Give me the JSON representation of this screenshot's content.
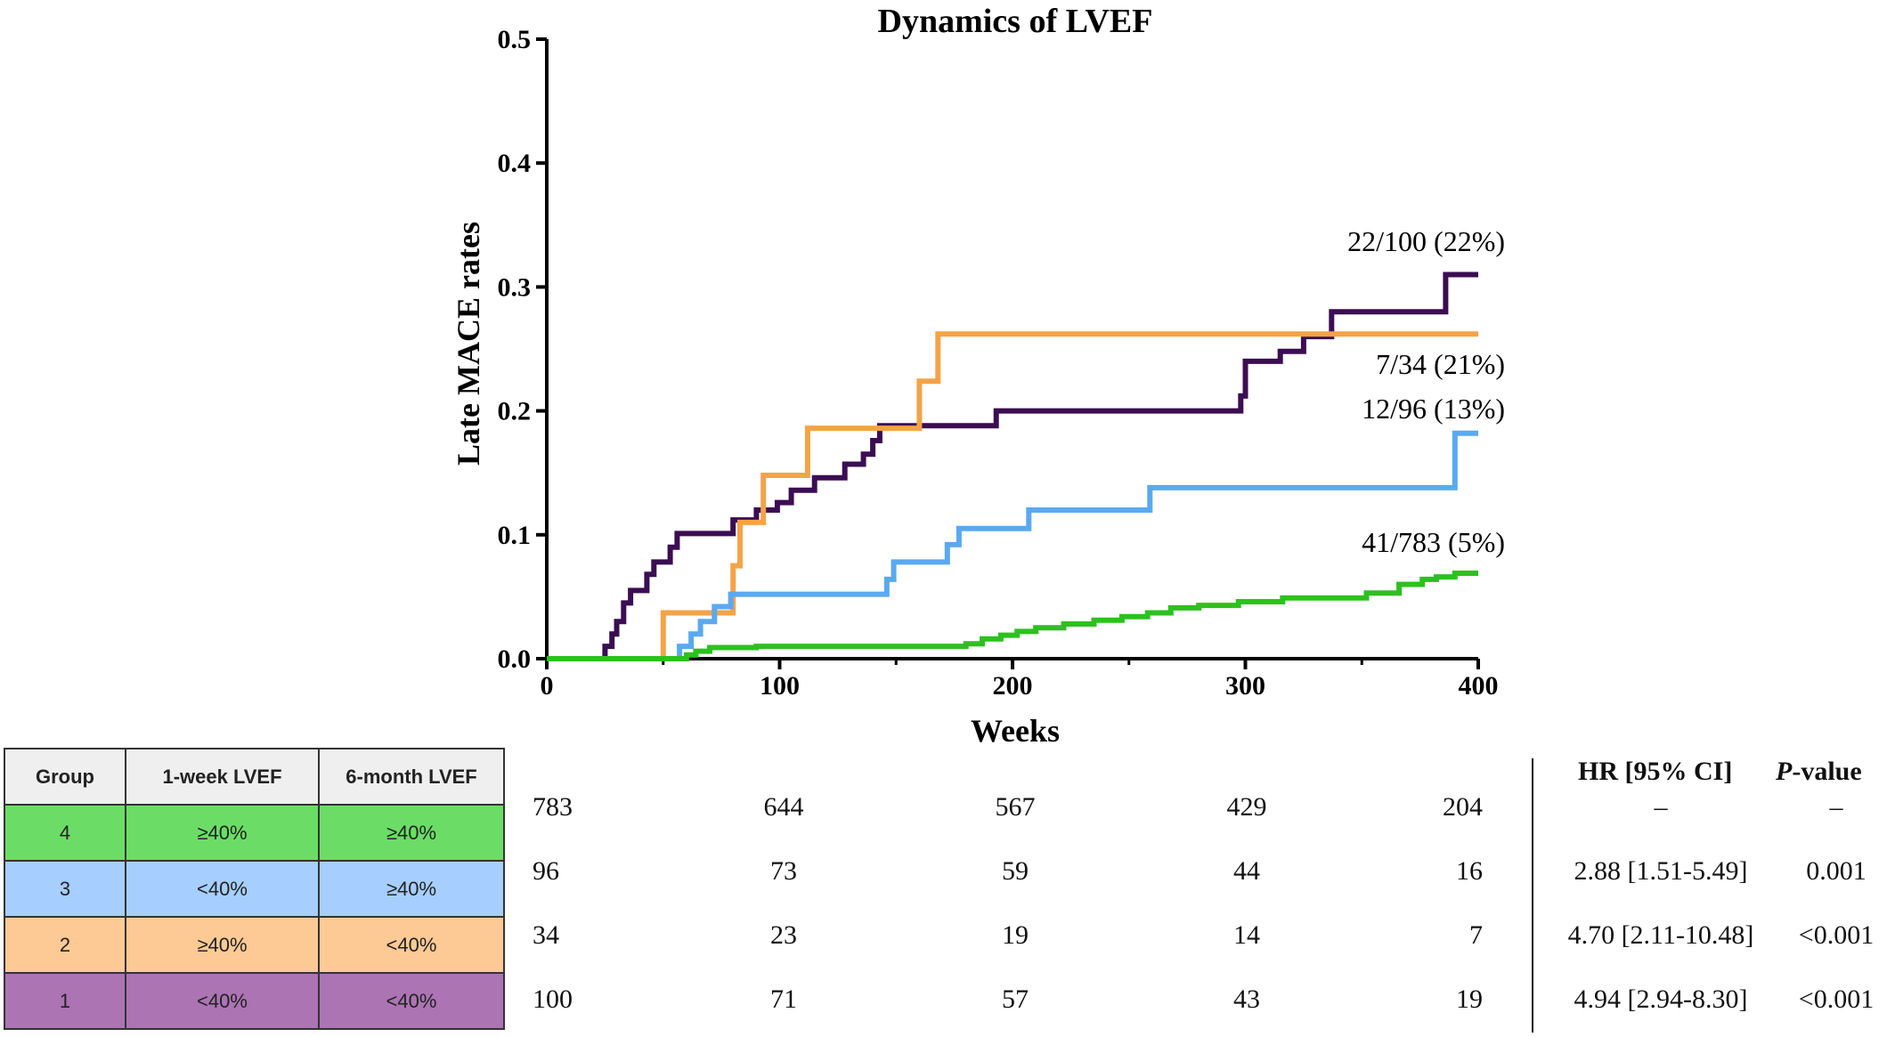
{
  "chart_data": {
    "type": "line",
    "step": true,
    "title": "Dynamics of LVEF",
    "xlabel": "Weeks",
    "ylabel": "Late MACE rates",
    "xlim": [
      0,
      400
    ],
    "ylim": [
      0,
      0.5
    ],
    "xticks": [
      "0",
      "100",
      "200",
      "300",
      "400"
    ],
    "yticks": [
      "0.0",
      "0.1",
      "0.2",
      "0.3",
      "0.4",
      "0.5"
    ],
    "grid": false,
    "series": [
      {
        "group": "1",
        "label": "22/100 (22%)",
        "color": "#3b0d52",
        "points": [
          [
            0,
            0
          ],
          [
            25,
            0
          ],
          [
            25,
            0.01
          ],
          [
            28,
            0.01
          ],
          [
            28,
            0.02
          ],
          [
            30,
            0.02
          ],
          [
            30,
            0.03
          ],
          [
            33,
            0.03
          ],
          [
            33,
            0.045
          ],
          [
            36,
            0.045
          ],
          [
            36,
            0.055
          ],
          [
            43,
            0.055
          ],
          [
            43,
            0.068
          ],
          [
            46,
            0.068
          ],
          [
            46,
            0.078
          ],
          [
            53,
            0.078
          ],
          [
            53,
            0.09
          ],
          [
            56,
            0.09
          ],
          [
            56,
            0.101
          ],
          [
            80,
            0.101
          ],
          [
            80,
            0.112
          ],
          [
            90,
            0.112
          ],
          [
            90,
            0.12
          ],
          [
            99,
            0.12
          ],
          [
            99,
            0.126
          ],
          [
            105,
            0.126
          ],
          [
            105,
            0.136
          ],
          [
            115,
            0.136
          ],
          [
            115,
            0.146
          ],
          [
            128,
            0.146
          ],
          [
            128,
            0.157
          ],
          [
            136,
            0.157
          ],
          [
            136,
            0.165
          ],
          [
            140,
            0.165
          ],
          [
            140,
            0.176
          ],
          [
            143,
            0.176
          ],
          [
            143,
            0.188
          ],
          [
            193,
            0.188
          ],
          [
            193,
            0.2
          ],
          [
            298,
            0.2
          ],
          [
            298,
            0.212
          ],
          [
            300,
            0.212
          ],
          [
            300,
            0.24
          ],
          [
            315,
            0.24
          ],
          [
            315,
            0.248
          ],
          [
            325,
            0.248
          ],
          [
            325,
            0.26
          ],
          [
            337,
            0.26
          ],
          [
            337,
            0.28
          ],
          [
            386,
            0.28
          ],
          [
            386,
            0.31
          ],
          [
            400,
            0.31
          ]
        ]
      },
      {
        "group": "2",
        "label": "7/34 (21%)",
        "color": "#f4a346",
        "points": [
          [
            0,
            0
          ],
          [
            50,
            0
          ],
          [
            50,
            0.037
          ],
          [
            80,
            0.037
          ],
          [
            80,
            0.075
          ],
          [
            83,
            0.075
          ],
          [
            83,
            0.11
          ],
          [
            93,
            0.11
          ],
          [
            93,
            0.148
          ],
          [
            112,
            0.148
          ],
          [
            112,
            0.186
          ],
          [
            160,
            0.186
          ],
          [
            160,
            0.224
          ],
          [
            168,
            0.224
          ],
          [
            168,
            0.262
          ],
          [
            400,
            0.262
          ]
        ]
      },
      {
        "group": "3",
        "label": "12/96 (13%)",
        "color": "#5aa9f0",
        "points": [
          [
            0,
            0
          ],
          [
            57,
            0
          ],
          [
            57,
            0.01
          ],
          [
            62,
            0.01
          ],
          [
            62,
            0.02
          ],
          [
            66,
            0.02
          ],
          [
            66,
            0.03
          ],
          [
            72,
            0.03
          ],
          [
            72,
            0.042
          ],
          [
            79,
            0.042
          ],
          [
            79,
            0.052
          ],
          [
            146,
            0.052
          ],
          [
            146,
            0.064
          ],
          [
            149,
            0.064
          ],
          [
            149,
            0.078
          ],
          [
            172,
            0.078
          ],
          [
            172,
            0.092
          ],
          [
            177,
            0.092
          ],
          [
            177,
            0.105
          ],
          [
            207,
            0.105
          ],
          [
            207,
            0.12
          ],
          [
            259,
            0.12
          ],
          [
            259,
            0.138
          ],
          [
            390,
            0.138
          ],
          [
            390,
            0.182
          ],
          [
            400,
            0.182
          ]
        ]
      },
      {
        "group": "4",
        "label": "41/783 (5%)",
        "color": "#2cc11e",
        "points": [
          [
            0,
            0
          ],
          [
            60,
            0
          ],
          [
            60,
            0.003
          ],
          [
            64,
            0.003
          ],
          [
            64,
            0.006
          ],
          [
            70,
            0.006
          ],
          [
            70,
            0.009
          ],
          [
            90,
            0.009
          ],
          [
            90,
            0.01
          ],
          [
            180,
            0.01
          ],
          [
            180,
            0.012
          ],
          [
            187,
            0.012
          ],
          [
            187,
            0.016
          ],
          [
            195,
            0.016
          ],
          [
            195,
            0.019
          ],
          [
            202,
            0.019
          ],
          [
            202,
            0.022
          ],
          [
            210,
            0.022
          ],
          [
            210,
            0.025
          ],
          [
            222,
            0.025
          ],
          [
            222,
            0.028
          ],
          [
            235,
            0.028
          ],
          [
            235,
            0.031
          ],
          [
            247,
            0.031
          ],
          [
            247,
            0.034
          ],
          [
            258,
            0.034
          ],
          [
            258,
            0.037
          ],
          [
            268,
            0.037
          ],
          [
            268,
            0.041
          ],
          [
            280,
            0.041
          ],
          [
            280,
            0.043
          ],
          [
            297,
            0.043
          ],
          [
            297,
            0.046
          ],
          [
            316,
            0.046
          ],
          [
            316,
            0.049
          ],
          [
            352,
            0.049
          ],
          [
            352,
            0.053
          ],
          [
            366,
            0.053
          ],
          [
            366,
            0.06
          ],
          [
            376,
            0.06
          ],
          [
            376,
            0.064
          ],
          [
            382,
            0.064
          ],
          [
            382,
            0.066
          ],
          [
            390,
            0.066
          ],
          [
            390,
            0.069
          ],
          [
            400,
            0.069
          ]
        ]
      }
    ]
  },
  "table": {
    "headers": [
      "Group",
      "1-week LVEF",
      "6-month LVEF"
    ],
    "rows": [
      {
        "group": "4",
        "week1": "≥40%",
        "month6": "≥40%",
        "color": "#6bdd66",
        "risk": [
          "783",
          "644",
          "567",
          "429",
          "204"
        ],
        "hr": "–",
        "p": "–"
      },
      {
        "group": "3",
        "week1": "<40%",
        "month6": "≥40%",
        "color": "#a6ceff",
        "risk": [
          "96",
          "73",
          "59",
          "44",
          "16"
        ],
        "hr": "2.88 [1.51-5.49]",
        "p": "0.001"
      },
      {
        "group": "2",
        "week1": "≥40%",
        "month6": "<40%",
        "color": "#fdca96",
        "risk": [
          "34",
          "23",
          "19",
          "14",
          "7"
        ],
        "hr": "4.70 [2.11-10.48]",
        "p": "<0.001"
      },
      {
        "group": "1",
        "week1": "<40%",
        "month6": "<40%",
        "color": "#ac74b3",
        "risk": [
          "100",
          "71",
          "57",
          "43",
          "19"
        ],
        "hr": "4.94 [2.94-8.30]",
        "p": "<0.001"
      }
    ],
    "hr_header": "HR [95% CI]",
    "p_header_italic": "P",
    "p_header_rest": "-value"
  }
}
